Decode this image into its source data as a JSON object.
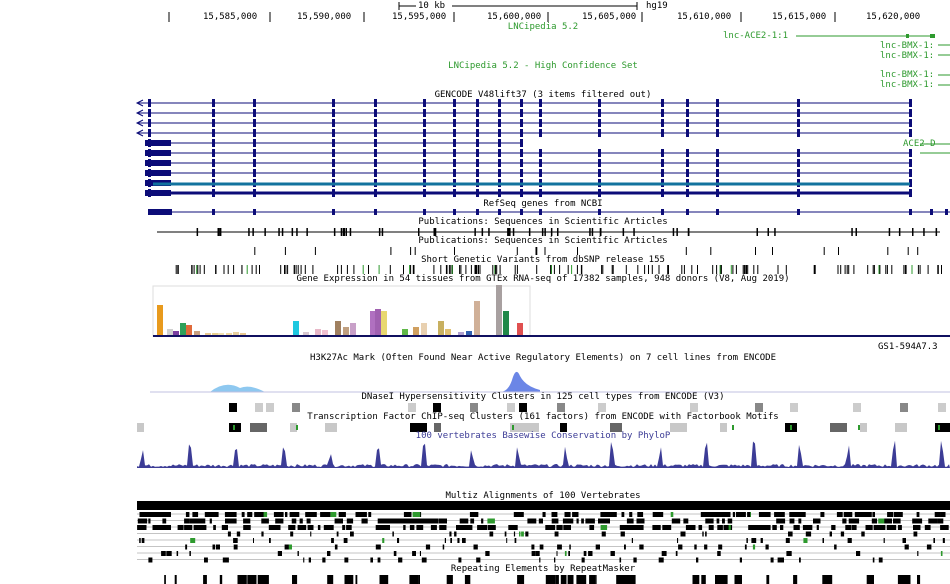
{
  "ruler": {
    "scale_label": "10 kb",
    "assembly": "hg19",
    "ticks": [
      "15,585,000",
      "15,590,000",
      "15,595,000",
      "15,600,000",
      "15,605,000",
      "15,610,000",
      "15,615,000",
      "15,620,000"
    ]
  },
  "tracks": {
    "lncipedia": {
      "title": "LNCipedia 5.2",
      "items": [
        "lnc-ACE2-1:1",
        "lnc-BMX-1:",
        "lnc-BMX-1:",
        "lnc-BMX-1:",
        "lnc-BMX-1:"
      ]
    },
    "lncipedia_hc": {
      "title": "LNCipedia 5.2 - High Confidence Set"
    },
    "gencode": {
      "title": "GENCODE V48lift37 (3 items filtered out)",
      "item": "ACE2-D"
    },
    "refseq": {
      "title": "RefSeq genes from NCBI"
    },
    "pubs1": {
      "title": "Publications: Sequences in Scientific Articles"
    },
    "pubs2": {
      "title": "Publications: Sequences in Scientific Articles"
    },
    "snp": {
      "title": "Short Genetic Variants from dbSNP release 155"
    },
    "gtex": {
      "title": "Gene Expression in 54 tissues from GTEx RNA-seq of 17382 samples, 948 donors (V8, Aug 2019)",
      "item": "GS1-594A7.3"
    },
    "h3k27ac": {
      "title": "H3K27Ac Mark (Often Found Near Active Regulatory Elements) on 7 cell lines from ENCODE"
    },
    "dnase": {
      "title": "DNaseI Hypersensitivity Clusters in 125 cell types from ENCODE (V3)"
    },
    "tfbs": {
      "title": "Transcription Factor ChIP-seq Clusters (161 factors) from ENCODE with Factorbook Motifs"
    },
    "phylop": {
      "title": "100 vertebrates Basewise Conservation by PhyloP"
    },
    "multiz": {
      "title": "Multiz Alignments of 100 Vertebrates"
    },
    "rmsk": {
      "title": "Repeating Elements by RepeatMasker"
    }
  },
  "colors": {
    "gencode": "#0c0c78",
    "lncipedia": "#2e9a2e",
    "phylop": "#3c3c96",
    "h3k27ac": "#6b86e6",
    "selected_transcript": "#12739e"
  }
}
